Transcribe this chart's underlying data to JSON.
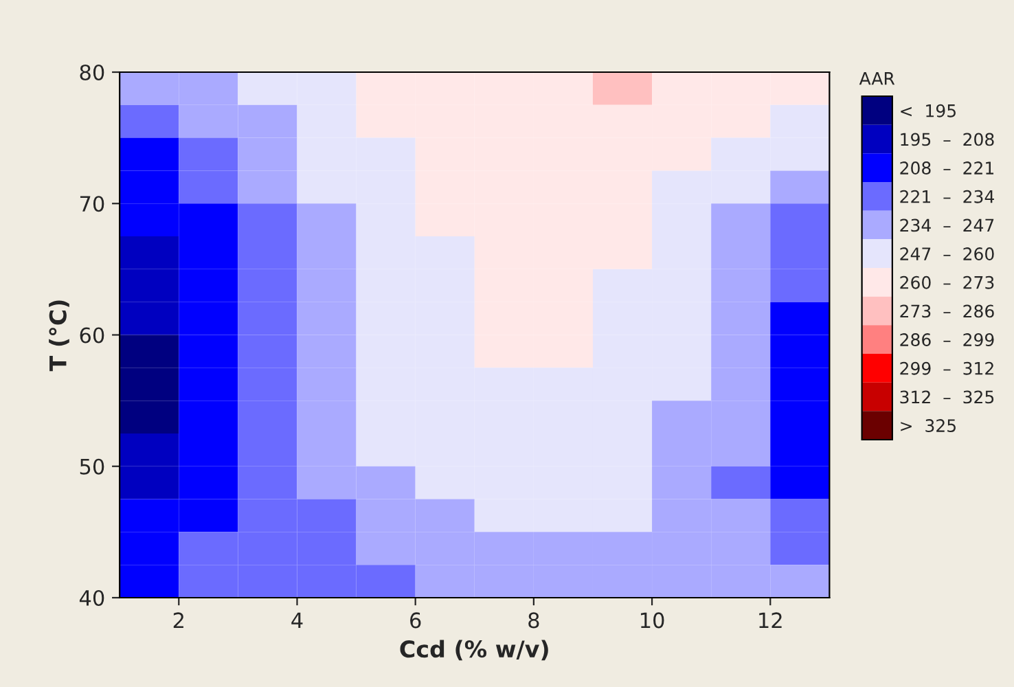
{
  "chart_data": {
    "type": "heatmap",
    "xlabel": "Ccd (% w/v)",
    "ylabel": "T (°C)",
    "clabel": "AAR",
    "x": [
      1.5,
      2.5,
      3.5,
      4.5,
      5.5,
      6.5,
      7.5,
      8.5,
      9.5,
      10.5,
      11.5,
      12.5
    ],
    "y": [
      78.75,
      76.25,
      73.75,
      71.25,
      68.75,
      66.25,
      63.75,
      61.25,
      58.75,
      56.25,
      53.75,
      51.25,
      48.75,
      46.25,
      43.75,
      41.25
    ],
    "xlim": [
      1,
      13
    ],
    "xticks": [
      2,
      4,
      6,
      8,
      10,
      12
    ],
    "ylim": [
      40,
      80
    ],
    "yticks": [
      40,
      50,
      60,
      70,
      80
    ],
    "clim": [
      182,
      338
    ],
    "cticks": [
      {
        "value": 188.5,
        "label": "<  195"
      },
      {
        "value": 201.5,
        "label": "195  –  208"
      },
      {
        "value": 214.5,
        "label": "208  –  221"
      },
      {
        "value": 227.5,
        "label": "221  –  234"
      },
      {
        "value": 240.5,
        "label": "234  –  247"
      },
      {
        "value": 253.5,
        "label": "247  –  260"
      },
      {
        "value": 266.5,
        "label": "260  –  273"
      },
      {
        "value": 279.5,
        "label": "273  –  286"
      },
      {
        "value": 292.5,
        "label": "286  –  299"
      },
      {
        "value": 305.5,
        "label": "299  –  312"
      },
      {
        "value": 318.5,
        "label": "312  –  325"
      },
      {
        "value": 331.5,
        "label": ">  325"
      }
    ],
    "colors": [
      "#000080",
      "#0000c0",
      "#0000ff",
      "#6b6bff",
      "#aaaaff",
      "#e5e5fc",
      "#ffe8e8",
      "#ffc0c0",
      "#ff8080",
      "#ff0000",
      "#c80000",
      "#6b0000"
    ],
    "cells": [
      [
        240.5,
        240.5,
        253.5,
        253.5,
        266.5,
        266.5,
        266.5,
        266.5,
        279.5,
        266.5,
        266.5,
        266.5
      ],
      [
        227.5,
        240.5,
        240.5,
        253.5,
        266.5,
        266.5,
        266.5,
        266.5,
        266.5,
        266.5,
        266.5,
        253.5
      ],
      [
        214.5,
        227.5,
        240.5,
        253.5,
        253.5,
        266.5,
        266.5,
        266.5,
        266.5,
        266.5,
        253.5,
        253.5
      ],
      [
        214.5,
        227.5,
        240.5,
        253.5,
        253.5,
        266.5,
        266.5,
        266.5,
        266.5,
        253.5,
        253.5,
        240.5
      ],
      [
        214.5,
        214.5,
        227.5,
        240.5,
        253.5,
        266.5,
        266.5,
        266.5,
        266.5,
        253.5,
        240.5,
        227.5
      ],
      [
        201.5,
        214.5,
        227.5,
        240.5,
        253.5,
        253.5,
        266.5,
        266.5,
        266.5,
        253.5,
        240.5,
        227.5
      ],
      [
        201.5,
        214.5,
        227.5,
        240.5,
        253.5,
        253.5,
        266.5,
        266.5,
        253.5,
        253.5,
        240.5,
        227.5
      ],
      [
        201.5,
        214.5,
        227.5,
        240.5,
        253.5,
        253.5,
        266.5,
        266.5,
        253.5,
        253.5,
        240.5,
        214.5
      ],
      [
        188.5,
        214.5,
        227.5,
        240.5,
        253.5,
        253.5,
        266.5,
        266.5,
        253.5,
        253.5,
        240.5,
        214.5
      ],
      [
        188.5,
        214.5,
        227.5,
        240.5,
        253.5,
        253.5,
        253.5,
        253.5,
        253.5,
        253.5,
        240.5,
        214.5
      ],
      [
        188.5,
        214.5,
        227.5,
        240.5,
        253.5,
        253.5,
        253.5,
        253.5,
        253.5,
        240.5,
        240.5,
        214.5
      ],
      [
        201.5,
        214.5,
        227.5,
        240.5,
        253.5,
        253.5,
        253.5,
        253.5,
        253.5,
        240.5,
        240.5,
        214.5
      ],
      [
        201.5,
        214.5,
        227.5,
        240.5,
        240.5,
        253.5,
        253.5,
        253.5,
        253.5,
        240.5,
        227.5,
        214.5
      ],
      [
        214.5,
        214.5,
        227.5,
        227.5,
        240.5,
        240.5,
        253.5,
        253.5,
        253.5,
        240.5,
        240.5,
        227.5
      ],
      [
        214.5,
        227.5,
        227.5,
        227.5,
        240.5,
        240.5,
        240.5,
        240.5,
        240.5,
        240.5,
        240.5,
        227.5
      ],
      [
        214.5,
        227.5,
        227.5,
        227.5,
        227.5,
        240.5,
        240.5,
        240.5,
        240.5,
        240.5,
        240.5,
        240.5
      ]
    ]
  }
}
